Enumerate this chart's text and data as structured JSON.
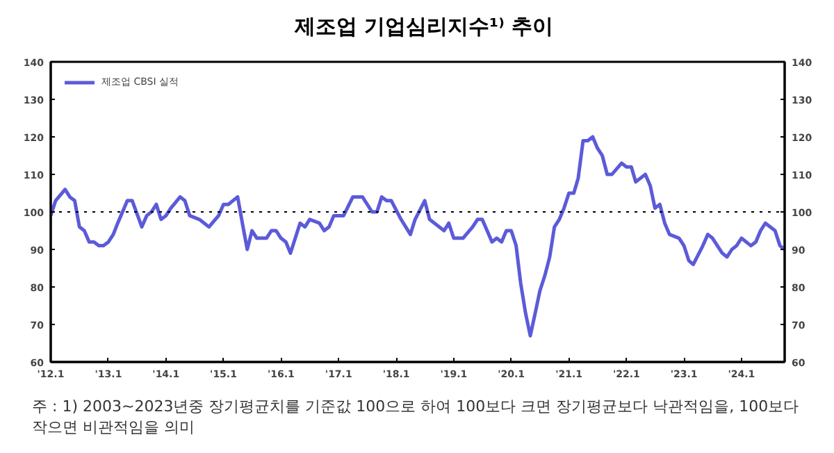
{
  "chart_data": {
    "type": "line",
    "title": "제조업 기업심리지수¹⁾ 추이",
    "annotations": [
      "주 : 1) 2003~2023년중 장기평균치를 기준값 100으로 하여 100보다 크면 장기평균보다 낙관적임을, 100보다 작으면 비관적임을 의미"
    ],
    "x": [
      "2012-01",
      "2012-02",
      "2012-04",
      "2012-05",
      "2012-06",
      "2012-07",
      "2012-08",
      "2012-09",
      "2012-10",
      "2012-11",
      "2012-12",
      "2013-01",
      "2013-02",
      "2013-03",
      "2013-05",
      "2013-06",
      "2013-08",
      "2013-09",
      "2013-10",
      "2013-11",
      "2013-12",
      "2014-01",
      "2014-02",
      "2014-04",
      "2014-05",
      "2014-06",
      "2014-08",
      "2014-09",
      "2014-10",
      "2014-12",
      "2015-01",
      "2015-02",
      "2015-04",
      "2015-05",
      "2015-06",
      "2015-07",
      "2015-08",
      "2015-10",
      "2015-11",
      "2015-12",
      "2016-01",
      "2016-02",
      "2016-03",
      "2016-05",
      "2016-06",
      "2016-07",
      "2016-09",
      "2016-10",
      "2016-11",
      "2016-12",
      "2017-02",
      "2017-04",
      "2017-06",
      "2017-08",
      "2017-09",
      "2017-10",
      "2017-11",
      "2017-12",
      "2018-02",
      "2018-04",
      "2018-05",
      "2018-07",
      "2018-08",
      "2018-09",
      "2018-11",
      "2018-12",
      "2019-01",
      "2019-03",
      "2019-05",
      "2019-06",
      "2019-07",
      "2019-09",
      "2019-10",
      "2019-11",
      "2019-12",
      "2020-01",
      "2020-02",
      "2020-03",
      "2020-04",
      "2020-05",
      "2020-06",
      "2020-07",
      "2020-08",
      "2020-09",
      "2020-10",
      "2020-11",
      "2020-12",
      "2021-01",
      "2021-02",
      "2021-03",
      "2021-04",
      "2021-05",
      "2021-06",
      "2021-07",
      "2021-08",
      "2021-09",
      "2021-10",
      "2021-12",
      "2022-01",
      "2022-02",
      "2022-03",
      "2022-05",
      "2022-06",
      "2022-07",
      "2022-08",
      "2022-09",
      "2022-10",
      "2022-12",
      "2023-01",
      "2023-02",
      "2023-03",
      "2023-05",
      "2023-06",
      "2023-07",
      "2023-09",
      "2023-10",
      "2023-11",
      "2023-12",
      "2024-01",
      "2024-03",
      "2024-04",
      "2024-05",
      "2024-06",
      "2024-08",
      "2024-09",
      "2024-10"
    ],
    "series": [
      {
        "name": "제조업 CBSI 실적",
        "color": "#5b5bd9",
        "values": [
          99,
          103,
          106,
          104,
          103,
          96,
          95,
          92,
          92,
          91,
          91,
          92,
          94,
          97,
          103,
          103,
          96,
          99,
          100,
          102,
          98,
          99,
          101,
          104,
          103,
          99,
          98,
          97,
          96,
          99,
          102,
          102,
          104,
          97,
          90,
          95,
          93,
          93,
          95,
          95,
          93,
          92,
          89,
          97,
          96,
          98,
          97,
          95,
          96,
          99,
          99,
          104,
          104,
          100,
          100,
          104,
          103,
          103,
          98,
          94,
          98,
          103,
          98,
          97,
          95,
          97,
          93,
          93,
          96,
          98,
          98,
          92,
          93,
          92,
          95,
          95,
          91,
          81,
          73,
          67,
          73,
          79,
          83,
          88,
          96,
          98,
          101,
          105,
          105,
          109,
          119,
          119,
          120,
          117,
          115,
          110,
          110,
          113,
          112,
          112,
          108,
          110,
          107,
          101,
          102,
          97,
          94,
          93,
          91,
          87,
          86,
          91,
          94,
          93,
          89,
          88,
          90,
          91,
          93,
          91,
          92,
          95,
          97,
          95,
          91,
          90
        ]
      }
    ],
    "xlim": [
      "2012-01",
      "2024-10"
    ],
    "xticks": [
      {
        "value": "2012-01",
        "label": "'12.1"
      },
      {
        "value": "2013-01",
        "label": "'13.1"
      },
      {
        "value": "2014-01",
        "label": "'14.1"
      },
      {
        "value": "2015-01",
        "label": "'15.1"
      },
      {
        "value": "2016-01",
        "label": "'16.1"
      },
      {
        "value": "2017-01",
        "label": "'17.1"
      },
      {
        "value": "2018-01",
        "label": "'18.1"
      },
      {
        "value": "2019-01",
        "label": "'19.1"
      },
      {
        "value": "2020-01",
        "label": "'20.1"
      },
      {
        "value": "2021-01",
        "label": "'21.1"
      },
      {
        "value": "2022-01",
        "label": "'22.1"
      },
      {
        "value": "2023-01",
        "label": "'23.1"
      },
      {
        "value": "2024-01",
        "label": "'24.1"
      }
    ],
    "ylim": [
      60,
      140
    ],
    "yticks": [
      60,
      70,
      80,
      90,
      100,
      110,
      120,
      130,
      140
    ],
    "y2lim": [
      60,
      140
    ],
    "y2ticks": [
      60,
      70,
      80,
      90,
      100,
      110,
      120,
      130,
      140
    ],
    "ref_lines": [
      {
        "axis": "y",
        "value": 100,
        "color": "#000000",
        "line_style": "dotted"
      }
    ],
    "grid": false,
    "legend": "top left",
    "marker": "none",
    "line_style": "solid"
  }
}
